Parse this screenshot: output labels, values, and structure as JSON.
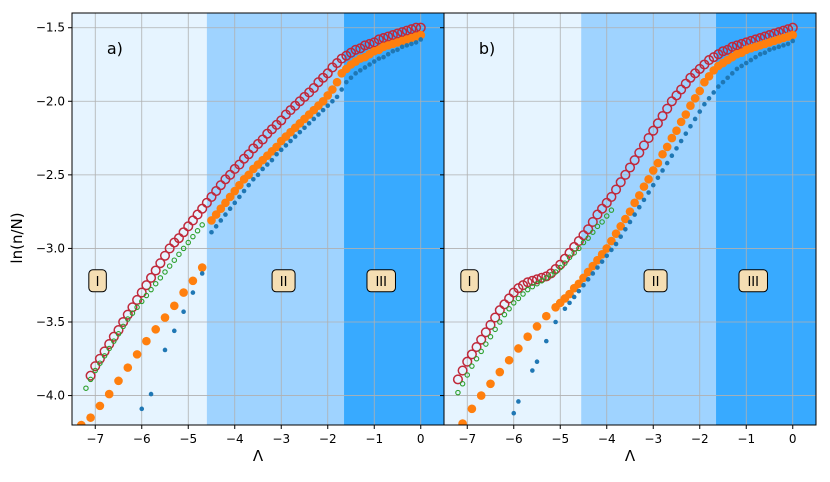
{
  "figure": {
    "ylabel": "ln(n/N)",
    "xlabel": "Λ"
  },
  "chart_data": [
    {
      "type": "scatter",
      "panel_label": "a)",
      "xlabel": "Λ",
      "ylabel": "ln(n/N)",
      "xlim": [
        -7.5,
        0.5
      ],
      "ylim": [
        -4.2,
        -1.4
      ],
      "xticks": [
        -7,
        -6,
        -5,
        -4,
        -3,
        -2,
        -1,
        0
      ],
      "yticks": [
        -4.0,
        -3.5,
        -3.0,
        -2.5,
        -2.0,
        -1.5
      ],
      "grid": true,
      "regions": [
        {
          "label": "I",
          "x_from": -7.5,
          "x_to": -4.6,
          "color": "#e6f4ff",
          "label_x": -6.95,
          "label_y": -3.22
        },
        {
          "label": "II",
          "x_from": -4.6,
          "x_to": -1.65,
          "color": "#9fd3ff",
          "label_x": -2.95,
          "label_y": -3.22
        },
        {
          "label": "III",
          "x_from": -1.65,
          "x_to": 0.5,
          "color": "#38aaff",
          "label_x": -0.85,
          "label_y": -3.22
        }
      ],
      "series": [
        {
          "marker": "open-circle-large",
          "color": "#c0293b",
          "x": [
            -7.1,
            -7.0,
            -6.9,
            -6.8,
            -6.7,
            -6.6,
            -6.5,
            -6.4,
            -6.3,
            -6.2,
            -6.1,
            -6.0,
            -5.9,
            -5.8,
            -5.7,
            -5.6,
            -5.5,
            -5.4,
            -5.3,
            -5.2,
            -5.1,
            -5.0,
            -4.9,
            -4.8,
            -4.7,
            -4.6,
            -4.5,
            -4.4,
            -4.3,
            -4.2,
            -4.1,
            -4.0,
            -3.9,
            -3.8,
            -3.7,
            -3.6,
            -3.5,
            -3.4,
            -3.3,
            -3.2,
            -3.1,
            -3.0,
            -2.9,
            -2.8,
            -2.7,
            -2.6,
            -2.5,
            -2.4,
            -2.3,
            -2.2,
            -2.1,
            -2.0,
            -1.9,
            -1.8,
            -1.7,
            -1.6,
            -1.5,
            -1.4,
            -1.3,
            -1.2,
            -1.1,
            -1.0,
            -0.9,
            -0.8,
            -0.7,
            -0.6,
            -0.5,
            -0.4,
            -0.3,
            -0.2,
            -0.1,
            0.0
          ],
          "y": [
            -3.865,
            -3.8,
            -3.75,
            -3.7,
            -3.65,
            -3.6,
            -3.555,
            -3.5,
            -3.45,
            -3.4,
            -3.35,
            -3.3,
            -3.25,
            -3.2,
            -3.15,
            -3.1,
            -3.05,
            -3.0,
            -2.96,
            -2.93,
            -2.89,
            -2.85,
            -2.81,
            -2.77,
            -2.73,
            -2.69,
            -2.65,
            -2.61,
            -2.57,
            -2.53,
            -2.5,
            -2.46,
            -2.43,
            -2.39,
            -2.36,
            -2.32,
            -2.29,
            -2.26,
            -2.22,
            -2.19,
            -2.16,
            -2.13,
            -2.09,
            -2.06,
            -2.03,
            -2.0,
            -1.97,
            -1.94,
            -1.91,
            -1.87,
            -1.84,
            -1.81,
            -1.77,
            -1.74,
            -1.71,
            -1.69,
            -1.67,
            -1.65,
            -1.64,
            -1.62,
            -1.61,
            -1.6,
            -1.58,
            -1.57,
            -1.56,
            -1.55,
            -1.54,
            -1.53,
            -1.52,
            -1.51,
            -1.5,
            -1.5
          ]
        },
        {
          "marker": "open-circle-small",
          "color": "#2ca02c",
          "x": [
            -7.2,
            -7.1,
            -7.0,
            -6.9,
            -6.8,
            -6.7,
            -6.6,
            -6.5,
            -6.4,
            -6.3,
            -6.2,
            -6.1,
            -6.0,
            -5.9,
            -5.8,
            -5.7,
            -5.6,
            -5.5,
            -5.4,
            -5.3,
            -5.2,
            -5.1,
            -5.0,
            -4.9,
            -4.8,
            -4.7
          ],
          "y": [
            -3.95,
            -3.89,
            -3.83,
            -3.78,
            -3.73,
            -3.68,
            -3.63,
            -3.58,
            -3.53,
            -3.48,
            -3.44,
            -3.4,
            -3.36,
            -3.32,
            -3.28,
            -3.24,
            -3.2,
            -3.16,
            -3.12,
            -3.08,
            -3.04,
            -3.0,
            -2.96,
            -2.92,
            -2.88,
            -2.84
          ]
        },
        {
          "marker": "filled-circle-large",
          "color": "#ff7f0e",
          "x": [
            -7.3,
            -7.1,
            -6.9,
            -6.7,
            -6.5,
            -6.3,
            -6.1,
            -5.9,
            -5.7,
            -5.5,
            -5.3,
            -5.1,
            -4.9,
            -4.7,
            -4.5,
            -4.4,
            -4.3,
            -4.2,
            -4.1,
            -4.0,
            -3.9,
            -3.8,
            -3.7,
            -3.6,
            -3.5,
            -3.4,
            -3.3,
            -3.2,
            -3.1,
            -3.0,
            -2.9,
            -2.8,
            -2.7,
            -2.6,
            -2.5,
            -2.4,
            -2.3,
            -2.2,
            -2.1,
            -2.0,
            -1.9,
            -1.8,
            -1.7,
            -1.6,
            -1.5,
            -1.4,
            -1.3,
            -1.2,
            -1.1,
            -1.0,
            -0.9,
            -0.8,
            -0.7,
            -0.6,
            -0.5,
            -0.4,
            -0.3,
            -0.2,
            -0.1,
            0.0
          ],
          "y": [
            -4.2,
            -4.15,
            -4.07,
            -3.99,
            -3.9,
            -3.81,
            -3.72,
            -3.63,
            -3.55,
            -3.47,
            -3.39,
            -3.3,
            -3.22,
            -3.13,
            -2.81,
            -2.77,
            -2.73,
            -2.69,
            -2.65,
            -2.61,
            -2.57,
            -2.53,
            -2.5,
            -2.46,
            -2.43,
            -2.4,
            -2.37,
            -2.34,
            -2.31,
            -2.27,
            -2.24,
            -2.21,
            -2.18,
            -2.15,
            -2.12,
            -2.09,
            -2.06,
            -2.03,
            -2.0,
            -1.96,
            -1.92,
            -1.87,
            -1.81,
            -1.78,
            -1.75,
            -1.73,
            -1.71,
            -1.7,
            -1.68,
            -1.66,
            -1.65,
            -1.63,
            -1.62,
            -1.61,
            -1.6,
            -1.59,
            -1.58,
            -1.57,
            -1.56,
            -1.55
          ]
        },
        {
          "marker": "filled-dot-small",
          "color": "#1f77b4",
          "x": [
            -6.0,
            -5.8,
            -5.5,
            -5.3,
            -5.1,
            -4.9,
            -4.7,
            -4.5,
            -4.4,
            -4.3,
            -4.2,
            -4.1,
            -4.0,
            -3.9,
            -3.8,
            -3.7,
            -3.6,
            -3.5,
            -3.4,
            -3.3,
            -3.2,
            -3.1,
            -3.0,
            -2.9,
            -2.8,
            -2.7,
            -2.6,
            -2.5,
            -2.4,
            -2.3,
            -2.2,
            -2.1,
            -2.0,
            -1.9,
            -1.8,
            -1.7,
            -1.6,
            -1.5,
            -1.4,
            -1.3,
            -1.2,
            -1.1,
            -1.0,
            -0.9,
            -0.8,
            -0.7,
            -0.6,
            -0.5,
            -0.4,
            -0.3,
            -0.2,
            -0.1,
            0.0
          ],
          "y": [
            -4.09,
            -3.99,
            -3.69,
            -3.56,
            -3.43,
            -3.3,
            -3.17,
            -2.89,
            -2.85,
            -2.81,
            -2.77,
            -2.73,
            -2.69,
            -2.65,
            -2.61,
            -2.57,
            -2.53,
            -2.5,
            -2.46,
            -2.43,
            -2.4,
            -2.36,
            -2.33,
            -2.3,
            -2.27,
            -2.24,
            -2.21,
            -2.18,
            -2.15,
            -2.12,
            -2.09,
            -2.06,
            -2.03,
            -2.0,
            -1.97,
            -1.92,
            -1.87,
            -1.84,
            -1.81,
            -1.79,
            -1.77,
            -1.75,
            -1.73,
            -1.71,
            -1.7,
            -1.68,
            -1.66,
            -1.65,
            -1.63,
            -1.62,
            -1.61,
            -1.6,
            -1.58
          ]
        }
      ]
    },
    {
      "type": "scatter",
      "panel_label": "b)",
      "xlabel": "Λ",
      "ylabel": "",
      "xlim": [
        -7.5,
        0.5
      ],
      "ylim": [
        -4.2,
        -1.4
      ],
      "xticks": [
        -7,
        -6,
        -5,
        -4,
        -3,
        -2,
        -1,
        0
      ],
      "yticks": [
        -4.0,
        -3.5,
        -3.0,
        -2.5,
        -2.0,
        -1.5
      ],
      "grid": true,
      "regions": [
        {
          "label": "I",
          "x_from": -7.5,
          "x_to": -4.55,
          "color": "#e6f4ff",
          "label_x": -6.95,
          "label_y": -3.22
        },
        {
          "label": "II",
          "x_from": -4.55,
          "x_to": -1.65,
          "color": "#9fd3ff",
          "label_x": -2.95,
          "label_y": -3.22
        },
        {
          "label": "III",
          "x_from": -1.65,
          "x_to": 0.5,
          "color": "#38aaff",
          "label_x": -0.85,
          "label_y": -3.22
        }
      ],
      "series": [
        {
          "marker": "open-circle-large",
          "color": "#c0293b",
          "x": [
            -7.2,
            -7.1,
            -7.0,
            -6.9,
            -6.8,
            -6.7,
            -6.6,
            -6.5,
            -6.4,
            -6.3,
            -6.2,
            -6.1,
            -6.0,
            -5.9,
            -5.8,
            -5.7,
            -5.6,
            -5.5,
            -5.4,
            -5.3,
            -5.2,
            -5.1,
            -5.0,
            -4.9,
            -4.8,
            -4.7,
            -4.6,
            -4.5,
            -4.4,
            -4.3,
            -4.2,
            -4.1,
            -4.0,
            -3.9,
            -3.8,
            -3.7,
            -3.6,
            -3.5,
            -3.4,
            -3.3,
            -3.2,
            -3.1,
            -3.0,
            -2.9,
            -2.8,
            -2.7,
            -2.6,
            -2.5,
            -2.4,
            -2.3,
            -2.2,
            -2.1,
            -2.0,
            -1.9,
            -1.8,
            -1.7,
            -1.6,
            -1.5,
            -1.4,
            -1.3,
            -1.2,
            -1.1,
            -1.0,
            -0.9,
            -0.8,
            -0.7,
            -0.6,
            -0.5,
            -0.4,
            -0.3,
            -0.2,
            -0.1,
            0.0
          ],
          "y": [
            -3.89,
            -3.83,
            -3.77,
            -3.72,
            -3.67,
            -3.62,
            -3.57,
            -3.52,
            -3.47,
            -3.42,
            -3.38,
            -3.34,
            -3.3,
            -3.27,
            -3.25,
            -3.23,
            -3.22,
            -3.21,
            -3.2,
            -3.19,
            -3.17,
            -3.14,
            -3.11,
            -3.07,
            -3.03,
            -2.99,
            -2.95,
            -2.91,
            -2.87,
            -2.82,
            -2.77,
            -2.73,
            -2.69,
            -2.65,
            -2.6,
            -2.55,
            -2.5,
            -2.45,
            -2.4,
            -2.35,
            -2.3,
            -2.25,
            -2.2,
            -2.15,
            -2.1,
            -2.05,
            -2.0,
            -1.96,
            -1.92,
            -1.88,
            -1.84,
            -1.81,
            -1.78,
            -1.75,
            -1.72,
            -1.7,
            -1.68,
            -1.66,
            -1.65,
            -1.63,
            -1.62,
            -1.61,
            -1.6,
            -1.59,
            -1.58,
            -1.57,
            -1.56,
            -1.55,
            -1.54,
            -1.53,
            -1.52,
            -1.51,
            -1.5
          ]
        },
        {
          "marker": "open-circle-small",
          "color": "#2ca02c",
          "x": [
            -7.2,
            -7.1,
            -7.0,
            -6.9,
            -6.8,
            -6.7,
            -6.6,
            -6.5,
            -6.4,
            -6.3,
            -6.2,
            -6.1,
            -6.0,
            -5.9,
            -5.8,
            -5.7,
            -5.6,
            -5.5,
            -5.4,
            -5.3,
            -5.2,
            -5.1,
            -5.0,
            -4.9,
            -4.8,
            -4.7,
            -4.6,
            -4.5,
            -4.4,
            -4.3,
            -4.2,
            -4.1,
            -4.0,
            -3.9
          ],
          "y": [
            -3.98,
            -3.92,
            -3.86,
            -3.8,
            -3.75,
            -3.7,
            -3.65,
            -3.6,
            -3.55,
            -3.5,
            -3.45,
            -3.41,
            -3.37,
            -3.34,
            -3.31,
            -3.28,
            -3.26,
            -3.24,
            -3.22,
            -3.2,
            -3.18,
            -3.16,
            -3.13,
            -3.1,
            -3.06,
            -3.03,
            -3.0,
            -2.96,
            -2.93,
            -2.89,
            -2.85,
            -2.82,
            -2.78,
            -2.74
          ]
        },
        {
          "marker": "filled-circle-large",
          "color": "#ff7f0e",
          "x": [
            -7.1,
            -6.9,
            -6.7,
            -6.5,
            -6.3,
            -6.1,
            -5.9,
            -5.7,
            -5.5,
            -5.3,
            -5.1,
            -5.0,
            -4.9,
            -4.8,
            -4.7,
            -4.6,
            -4.5,
            -4.4,
            -4.3,
            -4.2,
            -4.1,
            -4.0,
            -3.9,
            -3.8,
            -3.7,
            -3.6,
            -3.5,
            -3.4,
            -3.3,
            -3.2,
            -3.1,
            -3.0,
            -2.9,
            -2.8,
            -2.7,
            -2.6,
            -2.5,
            -2.4,
            -2.3,
            -2.2,
            -2.1,
            -2.0,
            -1.9,
            -1.8,
            -1.7,
            -1.6,
            -1.5,
            -1.4,
            -1.3,
            -1.2,
            -1.1,
            -1.0,
            -0.9,
            -0.8,
            -0.7,
            -0.6,
            -0.5,
            -0.4,
            -0.3,
            -0.2,
            -0.1,
            0.0
          ],
          "y": [
            -4.19,
            -4.09,
            -4.0,
            -3.92,
            -3.84,
            -3.76,
            -3.68,
            -3.6,
            -3.53,
            -3.46,
            -3.4,
            -3.37,
            -3.34,
            -3.31,
            -3.27,
            -3.24,
            -3.2,
            -3.16,
            -3.12,
            -3.08,
            -3.04,
            -3.0,
            -2.95,
            -2.9,
            -2.85,
            -2.8,
            -2.75,
            -2.69,
            -2.64,
            -2.58,
            -2.53,
            -2.47,
            -2.42,
            -2.36,
            -2.31,
            -2.25,
            -2.2,
            -2.14,
            -2.09,
            -2.03,
            -1.98,
            -1.93,
            -1.87,
            -1.83,
            -1.79,
            -1.76,
            -1.74,
            -1.72,
            -1.7,
            -1.68,
            -1.67,
            -1.65,
            -1.64,
            -1.63,
            -1.62,
            -1.61,
            -1.6,
            -1.59,
            -1.58,
            -1.57,
            -1.56,
            -1.55
          ]
        },
        {
          "marker": "filled-dot-small",
          "color": "#1f77b4",
          "x": [
            -6.0,
            -5.9,
            -5.6,
            -5.5,
            -5.3,
            -5.1,
            -4.9,
            -4.8,
            -4.7,
            -4.6,
            -4.5,
            -4.4,
            -4.3,
            -4.2,
            -4.1,
            -4.0,
            -3.9,
            -3.8,
            -3.7,
            -3.6,
            -3.5,
            -3.4,
            -3.3,
            -3.2,
            -3.1,
            -3.0,
            -2.9,
            -2.8,
            -2.7,
            -2.6,
            -2.5,
            -2.4,
            -2.3,
            -2.2,
            -2.1,
            -2.0,
            -1.9,
            -1.8,
            -1.7,
            -1.6,
            -1.5,
            -1.4,
            -1.3,
            -1.2,
            -1.1,
            -1.0,
            -0.9,
            -0.8,
            -0.7,
            -0.6,
            -0.5,
            -0.4,
            -0.3,
            -0.2,
            -0.1,
            0.0
          ],
          "y": [
            -4.12,
            -4.04,
            -3.83,
            -3.77,
            -3.63,
            -3.5,
            -3.41,
            -3.37,
            -3.33,
            -3.29,
            -3.25,
            -3.21,
            -3.17,
            -3.13,
            -3.09,
            -3.05,
            -3.01,
            -2.97,
            -2.92,
            -2.87,
            -2.82,
            -2.77,
            -2.72,
            -2.67,
            -2.62,
            -2.57,
            -2.52,
            -2.47,
            -2.42,
            -2.37,
            -2.32,
            -2.27,
            -2.22,
            -2.17,
            -2.12,
            -2.07,
            -2.02,
            -1.98,
            -1.94,
            -1.9,
            -1.87,
            -1.84,
            -1.81,
            -1.78,
            -1.76,
            -1.74,
            -1.72,
            -1.7,
            -1.68,
            -1.67,
            -1.65,
            -1.64,
            -1.63,
            -1.62,
            -1.61,
            -1.59
          ]
        }
      ]
    }
  ]
}
